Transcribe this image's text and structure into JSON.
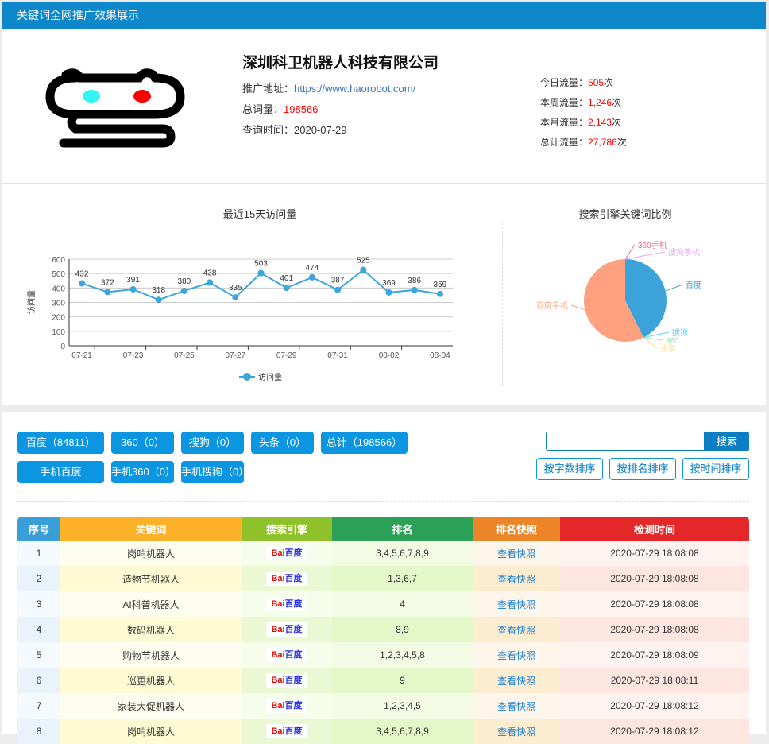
{
  "header": {
    "title": "关键词全网推广效果展示"
  },
  "company": {
    "name": "深圳科卫机器人科技有限公司",
    "url_label": "推广地址：",
    "url": "https://www.haorobot.com/",
    "total_words_label": "总词量：",
    "total_words": "198566",
    "query_time_label": "查询时间：",
    "query_time": "2020-07-29",
    "logo_colors": {
      "left_eye": "#33f5f5",
      "right_eye": "#ff0000"
    }
  },
  "traffic": [
    {
      "label": "今日流量：",
      "value": "505",
      "unit": "次"
    },
    {
      "label": "本周流量：",
      "value": "1,246",
      "unit": "次"
    },
    {
      "label": "本月流量：",
      "value": "2,143",
      "unit": "次"
    },
    {
      "label": "总计流量：",
      "value": "27,786",
      "unit": "次"
    }
  ],
  "chart_data": [
    {
      "type": "line",
      "title": "最近15天访问量",
      "ylabel": "访问量",
      "ylim": [
        0,
        600
      ],
      "yticks": [
        "0",
        "100",
        "200",
        "300",
        "400",
        "500",
        "600"
      ],
      "x": [
        "07-21",
        "07-22",
        "07-23",
        "07-24",
        "07-25",
        "07-26",
        "07-27",
        "07-28",
        "07-29",
        "07-30",
        "07-31",
        "08-01",
        "08-02",
        "08-03",
        "08-04"
      ],
      "xtick_labels": [
        "07-21",
        "07-23",
        "07-25",
        "07-27",
        "07-29",
        "07-31",
        "08-02",
        "08-04"
      ],
      "series": [
        {
          "name": "访问量",
          "values": [
            432,
            372,
            391,
            318,
            380,
            438,
            335,
            503,
            401,
            474,
            387,
            525,
            369,
            386,
            359
          ],
          "color": "#3ca5dc"
        }
      ],
      "grid": true,
      "legend": "bottom"
    },
    {
      "type": "pie",
      "title": "搜索引擎关键词比例",
      "slices": [
        {
          "name": "百度",
          "value": 84811,
          "color": "#3ba3d9"
        },
        {
          "name": "搜狗",
          "value": 0,
          "color": "#5bd5f0"
        },
        {
          "name": "360",
          "value": 0,
          "color": "#9ae6b0"
        },
        {
          "name": "头条",
          "value": 0,
          "color": "#fde08a"
        },
        {
          "name": "百度手机",
          "value": 113755,
          "color": "#ffa07f"
        },
        {
          "name": "360手机",
          "value": 0,
          "color": "#f76b8a"
        },
        {
          "name": "搜狗手机",
          "value": 0,
          "color": "#e6a9f0"
        }
      ]
    }
  ],
  "filters": {
    "row1": [
      "百度（84811）",
      "360（0）",
      "搜狗（0）",
      "头条（0）",
      "总计（198566）"
    ],
    "row2": [
      "手机百度",
      "手机360（0）",
      "手机搜狗（0）"
    ]
  },
  "search": {
    "value": "",
    "placeholder": "",
    "button": "搜索"
  },
  "sort": [
    "按字数排序",
    "按排名排序",
    "按时间排序"
  ],
  "table": {
    "headers": [
      "序号",
      "关键词",
      "搜索引擎",
      "排名",
      "排名快照",
      "检测时间"
    ],
    "header_colors": [
      "#3a9fd8",
      "#fdb128",
      "#8fc12a",
      "#2aa156",
      "#ec8528",
      "#e42729"
    ],
    "engine_logo": {
      "b1": "Bai",
      "b2": "百度"
    },
    "rows": [
      {
        "no": "1",
        "keyword": "岗哨机器人",
        "rank": "3,4,5,6,7,8,9",
        "snapshot": "查看快照",
        "time": "2020-07-29 18:08:08"
      },
      {
        "no": "2",
        "keyword": "造物节机器人",
        "rank": "1,3,6,7",
        "snapshot": "查看快照",
        "time": "2020-07-29 18:08:08"
      },
      {
        "no": "3",
        "keyword": "AI科普机器人",
        "rank": "4",
        "snapshot": "查看快照",
        "time": "2020-07-29 18:08:08"
      },
      {
        "no": "4",
        "keyword": "数码机器人",
        "rank": "8,9",
        "snapshot": "查看快照",
        "time": "2020-07-29 18:08:08"
      },
      {
        "no": "5",
        "keyword": "购物节机器人",
        "rank": "1,2,3,4,5,8",
        "snapshot": "查看快照",
        "time": "2020-07-29 18:08:09"
      },
      {
        "no": "6",
        "keyword": "巡更机器人",
        "rank": "9",
        "snapshot": "查看快照",
        "time": "2020-07-29 18:08:11"
      },
      {
        "no": "7",
        "keyword": "家装大促机器人",
        "rank": "1,2,3,4,5",
        "snapshot": "查看快照",
        "time": "2020-07-29 18:08:12"
      },
      {
        "no": "8",
        "keyword": "岗哨机器人",
        "rank": "3,4,5,6,7,8,9",
        "snapshot": "查看快照",
        "time": "2020-07-29 18:08:12"
      }
    ]
  }
}
